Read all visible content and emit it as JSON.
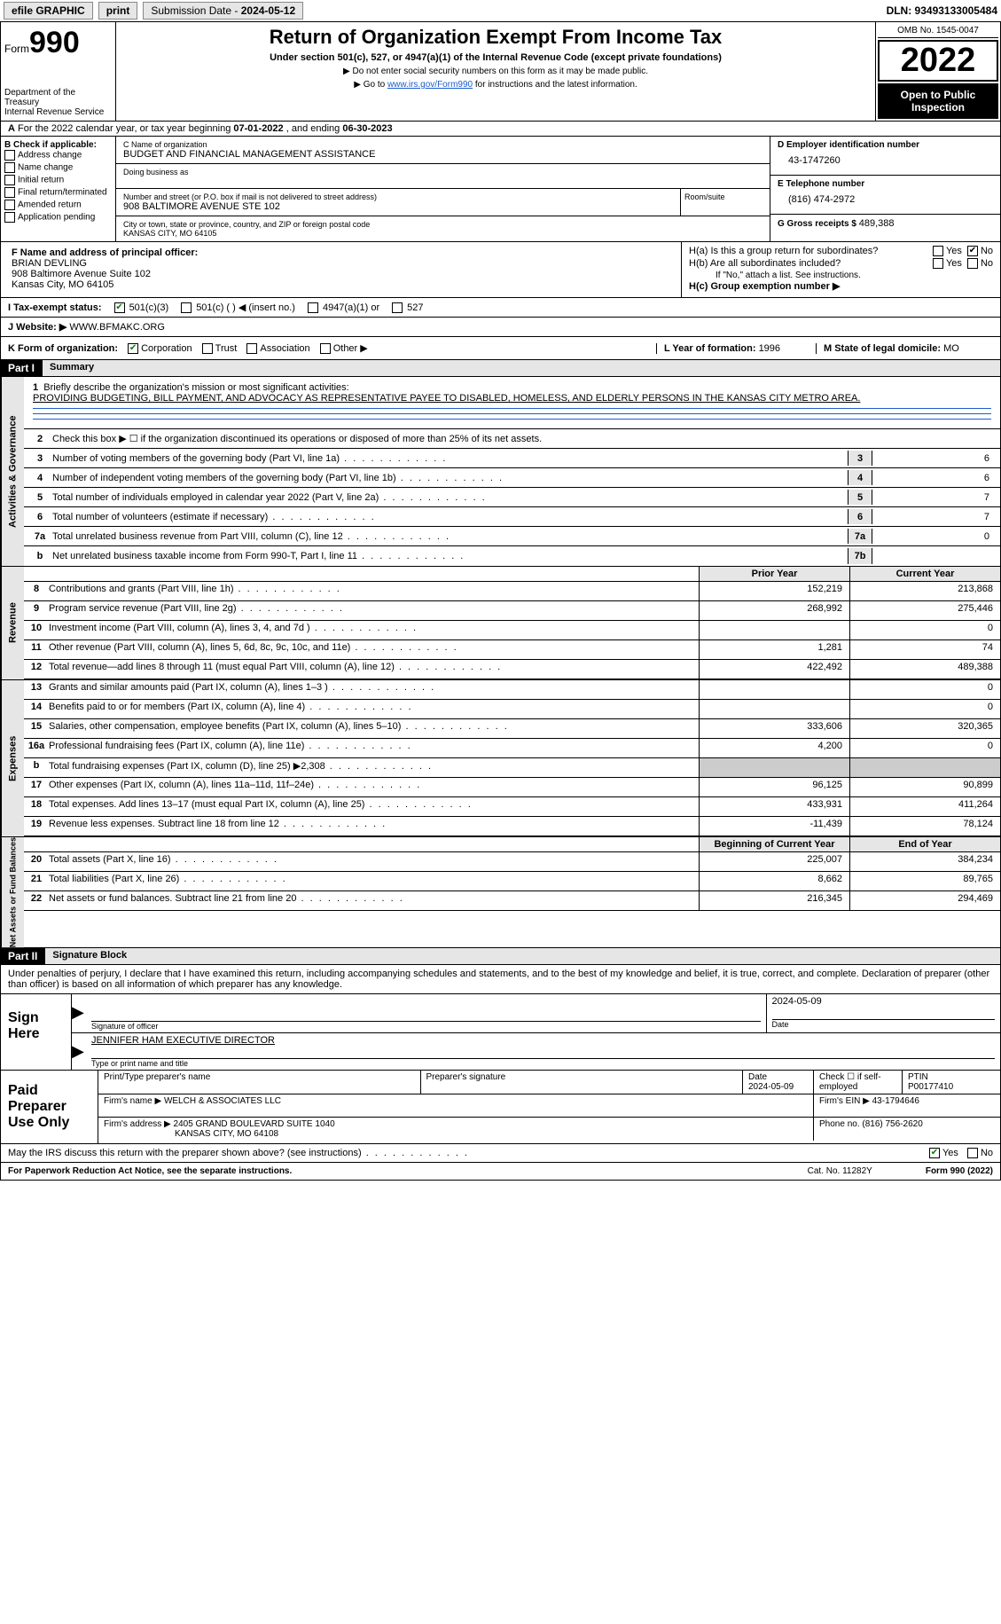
{
  "topbar": {
    "efile": "efile GRAPHIC",
    "print": "print",
    "subdate_label": "Submission Date - ",
    "subdate": "2024-05-12",
    "dln": "DLN: 93493133005484"
  },
  "header": {
    "form": "Form",
    "formnum": "990",
    "dept": "Department of the Treasury",
    "irs": "Internal Revenue Service",
    "title": "Return of Organization Exempt From Income Tax",
    "sub": "Under section 501(c), 527, or 4947(a)(1) of the Internal Revenue Code (except private foundations)",
    "sub2a": "▶ Do not enter social security numbers on this form as it may be made public.",
    "sub2b_pre": "▶ Go to ",
    "sub2b_link": "www.irs.gov/Form990",
    "sub2b_post": " for instructions and the latest information.",
    "omb": "OMB No. 1545-0047",
    "year": "2022",
    "otp": "Open to Public Inspection"
  },
  "A": {
    "text": "For the 2022 calendar year, or tax year beginning ",
    "begin": "07-01-2022",
    "mid": " , and ending ",
    "end": "06-30-2023"
  },
  "B": {
    "label": "B Check if applicable:",
    "opts": [
      "Address change",
      "Name change",
      "Initial return",
      "Final return/terminated",
      "Amended return",
      "Application pending"
    ]
  },
  "C": {
    "name_label": "C Name of organization",
    "name": "BUDGET AND FINANCIAL MANAGEMENT ASSISTANCE",
    "dba_label": "Doing business as",
    "street_label": "Number and street (or P.O. box if mail is not delivered to street address)",
    "room_label": "Room/suite",
    "street": "908 BALTIMORE AVENUE STE 102",
    "city_label": "City or town, state or province, country, and ZIP or foreign postal code",
    "city": "KANSAS CITY, MO  64105"
  },
  "D": {
    "ein_label": "D Employer identification number",
    "ein": "43-1747260",
    "tel_label": "E Telephone number",
    "tel": "(816) 474-2972",
    "gross_label": "G Gross receipts $ ",
    "gross": "489,388"
  },
  "F": {
    "label": "F Name and address of principal officer:",
    "name": "BRIAN DEVLING",
    "addr1": "908 Baltimore Avenue Suite 102",
    "addr2": "Kansas City, MO  64105"
  },
  "H": {
    "a_label": "H(a)  Is this a group return for subordinates?",
    "b_label": "H(b)  Are all subordinates included?",
    "b_note": "If \"No,\" attach a list. See instructions.",
    "c_label": "H(c)  Group exemption number ▶",
    "yes": "Yes",
    "no": "No"
  },
  "I": {
    "label": "I   Tax-exempt status:",
    "o1": "501(c)(3)",
    "o2": "501(c) (  ) ◀ (insert no.)",
    "o3": "4947(a)(1) or",
    "o4": "527"
  },
  "J": {
    "label": "J   Website: ▶ ",
    "val": "WWW.BFMAKC.ORG"
  },
  "K": {
    "label": "K Form of organization:",
    "opts": [
      "Corporation",
      "Trust",
      "Association",
      "Other ▶"
    ],
    "L_label": "L Year of formation: ",
    "L_val": "1996",
    "M_label": "M State of legal domicile: ",
    "M_val": "MO"
  },
  "partI": {
    "hdr": "Part I",
    "title": "Summary",
    "briefly": "Briefly describe the organization's mission or most significant activities:",
    "mission": "PROVIDING BUDGETING, BILL PAYMENT, AND ADVOCACY AS REPRESENTATIVE PAYEE TO DISABLED, HOMELESS, AND ELDERLY PERSONS IN THE KANSAS CITY METRO AREA.",
    "line2": "Check this box ▶ ☐ if the organization discontinued its operations or disposed of more than 25% of its net assets.",
    "prior": "Prior Year",
    "current": "Current Year",
    "begin": "Beginning of Current Year",
    "endyr": "End of Year",
    "lines_gov": [
      {
        "n": "3",
        "t": "Number of voting members of the governing body (Part VI, line 1a)",
        "box": "3",
        "v": "6"
      },
      {
        "n": "4",
        "t": "Number of independent voting members of the governing body (Part VI, line 1b)",
        "box": "4",
        "v": "6"
      },
      {
        "n": "5",
        "t": "Total number of individuals employed in calendar year 2022 (Part V, line 2a)",
        "box": "5",
        "v": "7"
      },
      {
        "n": "6",
        "t": "Total number of volunteers (estimate if necessary)",
        "box": "6",
        "v": "7"
      },
      {
        "n": "7a",
        "t": "Total unrelated business revenue from Part VIII, column (C), line 12",
        "box": "7a",
        "v": "0"
      },
      {
        "n": "b",
        "t": "Net unrelated business taxable income from Form 990-T, Part I, line 11",
        "box": "7b",
        "v": ""
      }
    ],
    "lines_rev": [
      {
        "n": "8",
        "t": "Contributions and grants (Part VIII, line 1h)",
        "py": "152,219",
        "cy": "213,868"
      },
      {
        "n": "9",
        "t": "Program service revenue (Part VIII, line 2g)",
        "py": "268,992",
        "cy": "275,446"
      },
      {
        "n": "10",
        "t": "Investment income (Part VIII, column (A), lines 3, 4, and 7d )",
        "py": "",
        "cy": "0"
      },
      {
        "n": "11",
        "t": "Other revenue (Part VIII, column (A), lines 5, 6d, 8c, 9c, 10c, and 11e)",
        "py": "1,281",
        "cy": "74"
      },
      {
        "n": "12",
        "t": "Total revenue—add lines 8 through 11 (must equal Part VIII, column (A), line 12)",
        "py": "422,492",
        "cy": "489,388"
      }
    ],
    "lines_exp": [
      {
        "n": "13",
        "t": "Grants and similar amounts paid (Part IX, column (A), lines 1–3 )",
        "py": "",
        "cy": "0"
      },
      {
        "n": "14",
        "t": "Benefits paid to or for members (Part IX, column (A), line 4)",
        "py": "",
        "cy": "0"
      },
      {
        "n": "15",
        "t": "Salaries, other compensation, employee benefits (Part IX, column (A), lines 5–10)",
        "py": "333,606",
        "cy": "320,365"
      },
      {
        "n": "16a",
        "t": "Professional fundraising fees (Part IX, column (A), line 11e)",
        "py": "4,200",
        "cy": "0"
      },
      {
        "n": "b",
        "t": "Total fundraising expenses (Part IX, column (D), line 25) ▶2,308",
        "py": "grey",
        "cy": "grey"
      },
      {
        "n": "17",
        "t": "Other expenses (Part IX, column (A), lines 11a–11d, 11f–24e)",
        "py": "96,125",
        "cy": "90,899"
      },
      {
        "n": "18",
        "t": "Total expenses. Add lines 13–17 (must equal Part IX, column (A), line 25)",
        "py": "433,931",
        "cy": "411,264"
      },
      {
        "n": "19",
        "t": "Revenue less expenses. Subtract line 18 from line 12",
        "py": "-11,439",
        "cy": "78,124"
      }
    ],
    "lines_na": [
      {
        "n": "20",
        "t": "Total assets (Part X, line 16)",
        "py": "225,007",
        "cy": "384,234"
      },
      {
        "n": "21",
        "t": "Total liabilities (Part X, line 26)",
        "py": "8,662",
        "cy": "89,765"
      },
      {
        "n": "22",
        "t": "Net assets or fund balances. Subtract line 21 from line 20",
        "py": "216,345",
        "cy": "294,469"
      }
    ]
  },
  "partII": {
    "hdr": "Part II",
    "title": "Signature Block",
    "penalties": "Under penalties of perjury, I declare that I have examined this return, including accompanying schedules and statements, and to the best of my knowledge and belief, it is true, correct, and complete. Declaration of preparer (other than officer) is based on all information of which preparer has any knowledge."
  },
  "sign": {
    "here": "Sign Here",
    "sig_officer": "Signature of officer",
    "date": "Date",
    "date_val": "2024-05-09",
    "typed": "JENNIFER HAM  EXECUTIVE DIRECTOR",
    "typed_label": "Type or print name and title"
  },
  "prep": {
    "title": "Paid Preparer Use Only",
    "print_label": "Print/Type preparer's name",
    "sig_label": "Preparer's signature",
    "date_label": "Date",
    "date_val": "2024-05-09",
    "check_label": "Check ☐ if self-employed",
    "ptin_label": "PTIN",
    "ptin": "P00177410",
    "firm_name_label": "Firm's name     ▶",
    "firm_name": "WELCH & ASSOCIATES LLC",
    "firm_ein_label": "Firm's EIN ▶ ",
    "firm_ein": "43-1794646",
    "firm_addr_label": "Firm's address ▶",
    "firm_addr1": "2405 GRAND BOULEVARD SUITE 1040",
    "firm_addr2": "KANSAS CITY, MO  64108",
    "phone_label": "Phone no. ",
    "phone": "(816) 756-2620"
  },
  "discuss": {
    "text": "May the IRS discuss this return with the preparer shown above? (see instructions)",
    "yes": "Yes",
    "no": "No"
  },
  "footer": {
    "left": "For Paperwork Reduction Act Notice, see the separate instructions.",
    "mid": "Cat. No. 11282Y",
    "right": "Form 990 (2022)"
  },
  "vtabs": {
    "gov": "Activities & Governance",
    "rev": "Revenue",
    "exp": "Expenses",
    "na": "Net Assets or Fund Balances"
  }
}
